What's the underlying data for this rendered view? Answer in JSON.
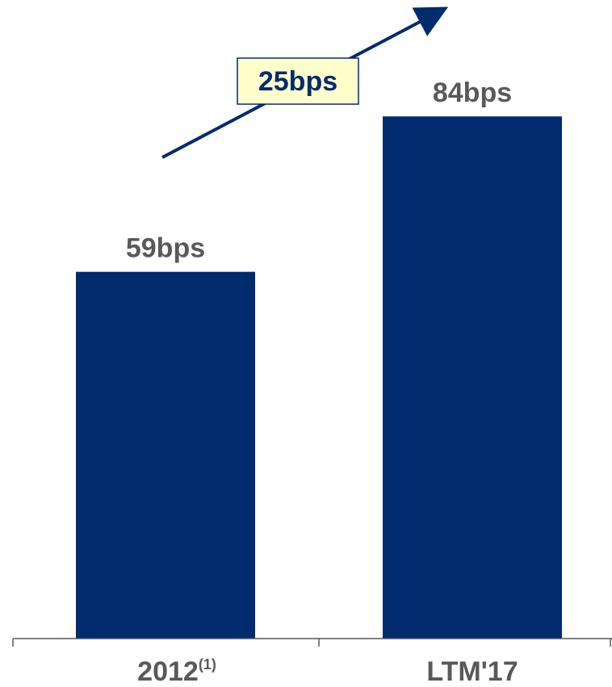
{
  "colors": {
    "bar": "#002B6F",
    "label": "#595959",
    "axis": "#595959",
    "arrow": "#002B6F",
    "callout_fill": "#FFFFCC",
    "callout_border": "#002B6F",
    "callout_text": "#002B6F"
  },
  "chart_data": {
    "type": "bar",
    "categories": [
      "2012",
      "LTM'17"
    ],
    "category_superscripts": [
      "(1)",
      ""
    ],
    "values": [
      59,
      84
    ],
    "value_labels": [
      "59bps",
      "84bps"
    ],
    "title": "",
    "xlabel": "",
    "ylabel": "",
    "ylim": [
      0,
      100
    ],
    "grid": false,
    "annotation": {
      "label": "25bps",
      "type": "growth-arrow"
    }
  }
}
